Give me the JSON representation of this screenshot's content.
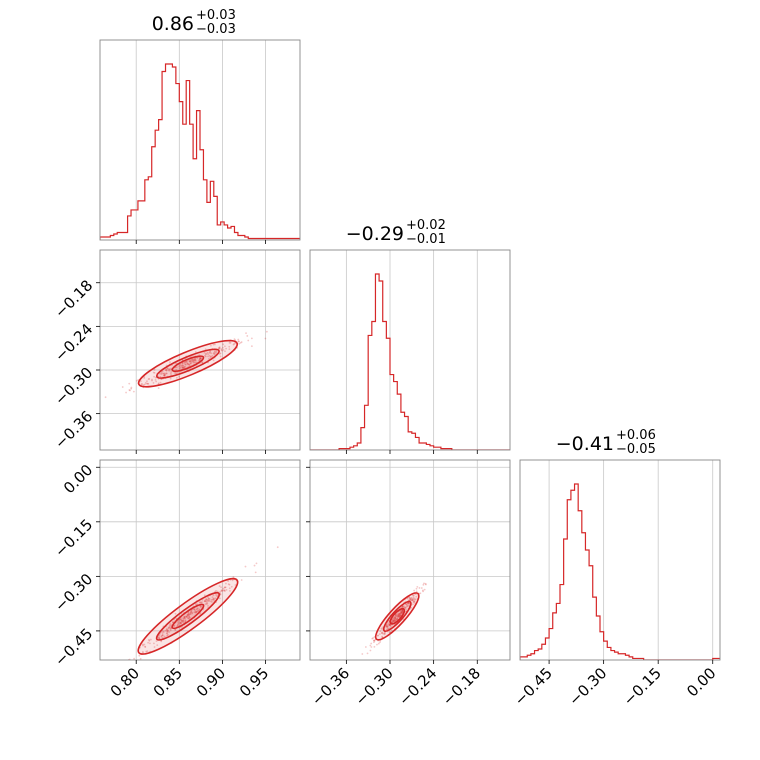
{
  "colors": {
    "accent": "#d62728",
    "grid": "#c8c8c8",
    "frame": "#888888"
  },
  "chart_data": {
    "type": "corner",
    "grid": true,
    "parameters": [
      {
        "title_value": "0.86",
        "title_plus": "+0.03",
        "title_minus": "−0.03"
      },
      {
        "title_value": "−0.29",
        "title_plus": "+0.02",
        "title_minus": "−0.01"
      },
      {
        "title_value": "−0.41",
        "title_plus": "+0.06",
        "title_minus": "−0.05"
      }
    ],
    "ranges": [
      [
        0.758,
        0.99
      ],
      [
        -0.41,
        -0.135
      ],
      [
        -0.53,
        0.02
      ]
    ],
    "ticks": [
      {
        "values": [
          0.8,
          0.85,
          0.9,
          0.95
        ],
        "labels": [
          "0.80",
          "0.85",
          "0.90",
          "0.95"
        ]
      },
      {
        "values": [
          -0.36,
          -0.3,
          -0.24,
          -0.18
        ],
        "labels": [
          "−0.36",
          "−0.30",
          "−0.24",
          "−0.18"
        ]
      },
      {
        "values": [
          -0.45,
          -0.3,
          -0.15,
          0.0
        ],
        "labels": [
          "−0.45",
          "−0.30",
          "−0.15",
          "0.00"
        ]
      }
    ],
    "histograms": [
      {
        "bin_edges_start": 0.758,
        "bin_width": 0.004,
        "counts": [
          2,
          2,
          2,
          3,
          4,
          5,
          5,
          5,
          16,
          20,
          20,
          26,
          26,
          40,
          42,
          62,
          73,
          80,
          112,
          117,
          117,
          115,
          104,
          92,
          77,
          106,
          77,
          54,
          86,
          60,
          40,
          25,
          39,
          29,
          10,
          12,
          10,
          8,
          9,
          5,
          3,
          3,
          2,
          1,
          1,
          1,
          1,
          1,
          1,
          1,
          1,
          1,
          1,
          1,
          1,
          1,
          1,
          1
        ]
      },
      {
        "bin_edges_start": -0.41,
        "bin_width": 0.005,
        "counts": [
          0,
          0,
          0,
          0,
          0,
          0,
          0,
          0,
          1,
          1,
          1,
          2,
          3,
          5,
          16,
          32,
          82,
          92,
          126,
          121,
          92,
          80,
          54,
          49,
          40,
          27,
          24,
          13,
          12,
          9,
          5,
          5,
          4,
          3,
          2,
          2,
          1,
          1,
          1,
          0,
          0,
          0,
          0,
          0,
          0,
          0,
          0,
          0,
          0,
          0,
          0,
          0,
          0,
          0,
          0
        ]
      },
      {
        "bin_edges_start": -0.53,
        "bin_width": 0.01,
        "counts": [
          2,
          2,
          3,
          4,
          6,
          7,
          10,
          14,
          20,
          30,
          36,
          48,
          77,
          102,
          108,
          112,
          95,
          81,
          70,
          60,
          40,
          28,
          18,
          12,
          8,
          6,
          5,
          4,
          4,
          3,
          2,
          1,
          1,
          1,
          0,
          0,
          0,
          0,
          0,
          0,
          0,
          0,
          0,
          0,
          0,
          0,
          0,
          0,
          0,
          0,
          0,
          0,
          0,
          1,
          1
        ]
      }
    ],
    "scatter_pairs": [
      {
        "x_param": 0,
        "y_param": 1,
        "slope": 0.495,
        "intercept": -0.717,
        "x_center": 0.86,
        "x_spread": 0.03
      },
      {
        "x_param": 0,
        "y_param": 2,
        "slope": 1.75,
        "intercept": -1.915,
        "x_center": 0.86,
        "x_spread": 0.03
      },
      {
        "x_param": 1,
        "y_param": 2,
        "slope": 2.2,
        "intercept": 0.228,
        "x_center": -0.29,
        "x_spread": 0.015
      }
    ]
  }
}
